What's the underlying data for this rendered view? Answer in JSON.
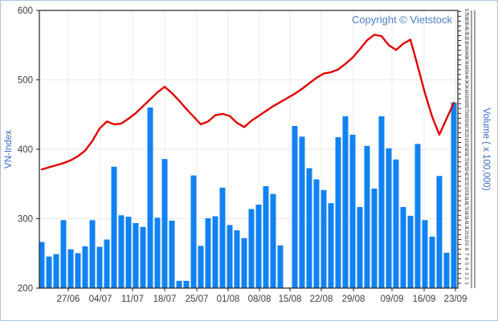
{
  "copyright": "Copyright © Vietstock",
  "chart_data": {
    "type": "bar+line",
    "title": "",
    "x_axis": {
      "tick_labels": [
        "27/06",
        "04/07",
        "11/07",
        "18/07",
        "25/07",
        "01/08",
        "08/08",
        "15/08",
        "22/08",
        "29/08",
        "09/09",
        "16/09",
        "23/09"
      ],
      "tick_x": [
        85,
        125,
        165,
        205,
        245,
        284,
        323,
        361,
        400,
        440,
        488,
        528,
        567
      ]
    },
    "left_axis": {
      "label": "VN-Index",
      "min": 200,
      "max": 600,
      "ticks": [
        200,
        300,
        400,
        500,
        600
      ]
    },
    "right_axis": {
      "label": "Volume ( x 100,000)",
      "min": 0,
      "max": 57.2,
      "tick_min": 1,
      "tick_max": 57,
      "tick_step": 1
    },
    "grid": {
      "h_lines": [
        300,
        400,
        500
      ],
      "v_on_date_ticks": true
    },
    "series": [
      {
        "name": "VN-Index",
        "type": "line",
        "color": "#e10000",
        "values": [
          371,
          374,
          377,
          380,
          384,
          390,
          398,
          412,
          430,
          440,
          436,
          437,
          444,
          452,
          462,
          472,
          482,
          490,
          481,
          470,
          458,
          447,
          436,
          440,
          449,
          451,
          448,
          438,
          432,
          441,
          448,
          455,
          462,
          468,
          474,
          480,
          487,
          495,
          503,
          509,
          511,
          515,
          523,
          532,
          544,
          557,
          565,
          563,
          550,
          543,
          552,
          558,
          520,
          481,
          447,
          421,
          444,
          467
        ]
      },
      {
        "name": "Volume",
        "type": "bar",
        "color": "#1282f2",
        "values": [
          9.5,
          6.5,
          7.0,
          14.0,
          8.0,
          7.2,
          8.6,
          14.0,
          8.5,
          10.0,
          25.0,
          15.0,
          14.7,
          13.4,
          12.6,
          37.2,
          14.5,
          26.6,
          13.9,
          1.5,
          1.5,
          23.2,
          8.7,
          14.4,
          14.8,
          20.7,
          13.0,
          11.9,
          10.3,
          16.3,
          17.2,
          21.0,
          19.4,
          8.8,
          0,
          33.4,
          31.2,
          24.7,
          22.4,
          20.2,
          17.5,
          31.1,
          35.4,
          31.6,
          16.7,
          29.3,
          20.5,
          35.4,
          28.8,
          26.5,
          16.7,
          14.9,
          29.7,
          14.0,
          10.6,
          23.1,
          7.3,
          38.2
        ]
      }
    ],
    "layout_hints": {
      "legend": "none",
      "bars_per_x": "daily",
      "right_rule_lines_x": [
        587,
        591
      ]
    }
  },
  "colors": {
    "background": "#ffffff",
    "outer_border": "#aac4e0",
    "grid": "#ebebeb",
    "axis": "#222222",
    "tick_text": "#3d3d3d",
    "axis_title_blue": "#3a66c8",
    "copyright_blue": "#4d80c8",
    "bar_blue": "#1282f2",
    "line_red": "#e10000"
  }
}
